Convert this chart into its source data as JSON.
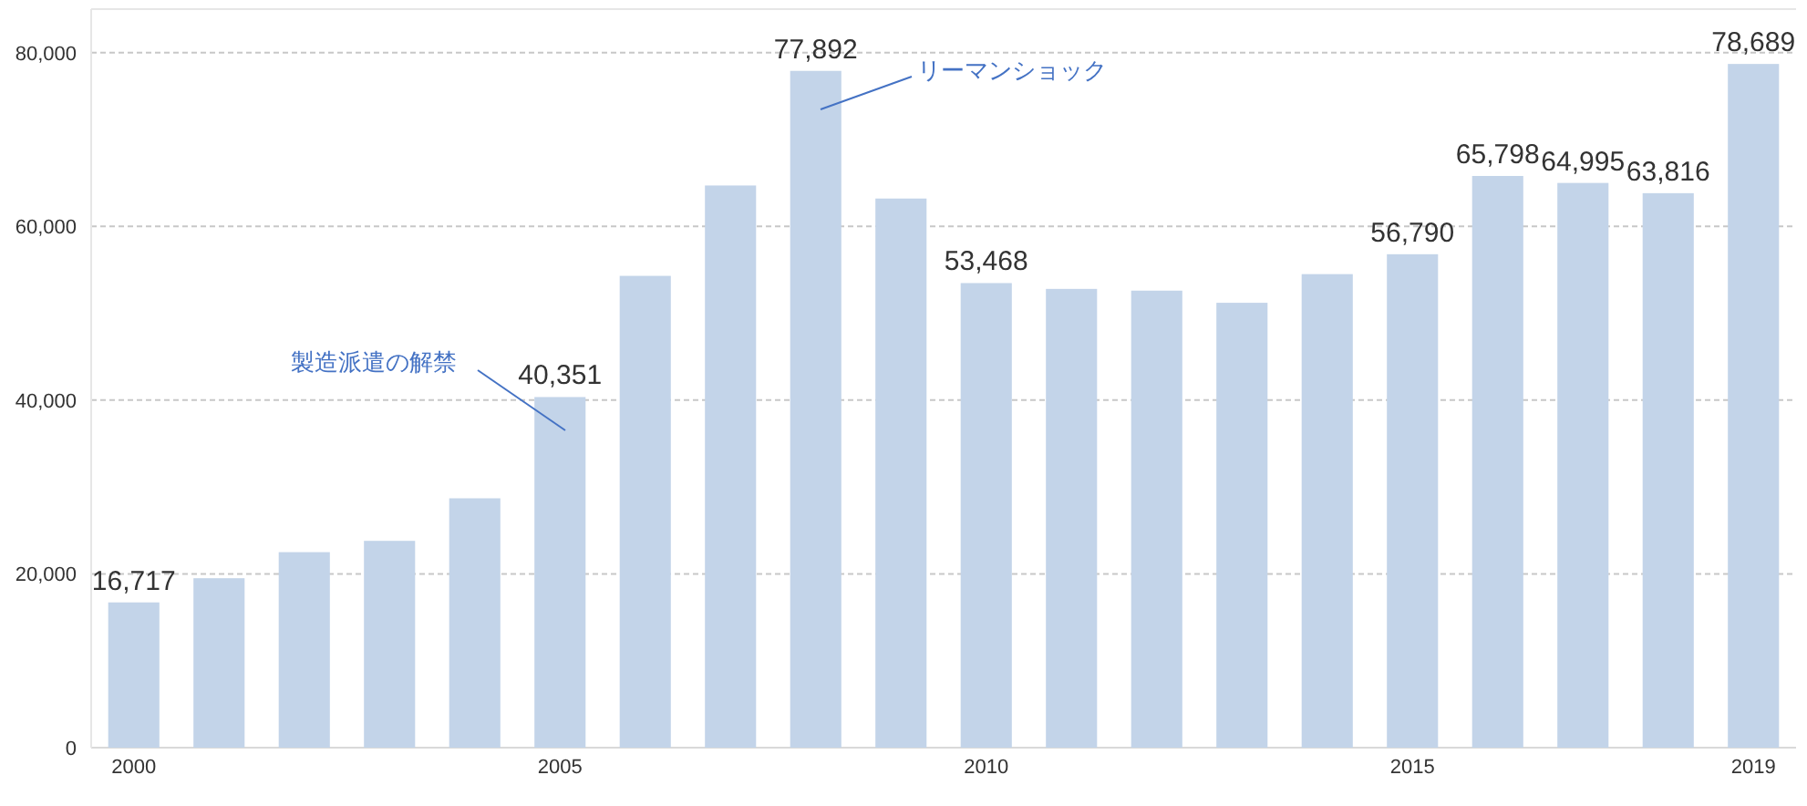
{
  "chart_data": {
    "type": "bar",
    "categories": [
      "2000",
      null,
      null,
      null,
      null,
      "2005",
      null,
      null,
      null,
      null,
      "2010",
      null,
      null,
      null,
      null,
      "2015",
      null,
      null,
      null,
      "2019"
    ],
    "values": [
      16717,
      19500,
      22500,
      23800,
      28700,
      40351,
      54300,
      64700,
      77892,
      63200,
      53468,
      52800,
      52600,
      51200,
      54500,
      56790,
      65798,
      64995,
      63816,
      78689
    ],
    "value_labels": [
      "16,717",
      null,
      null,
      null,
      null,
      "40,351",
      null,
      null,
      "77,892",
      null,
      "53,468",
      null,
      null,
      null,
      null,
      "56,790",
      "65,798",
      "64,995",
      "63,816",
      "78,689"
    ],
    "color": "#c3d4e9",
    "ylim": [
      0,
      85000
    ],
    "yticks": [
      {
        "value": 0,
        "label": "0"
      },
      {
        "value": 20000,
        "label": "20,000"
      },
      {
        "value": 40000,
        "label": "40,000"
      },
      {
        "value": 60000,
        "label": "60,000"
      },
      {
        "value": 80000,
        "label": "80,000"
      }
    ],
    "grid": "y",
    "annotations": [
      "製造派遣の解禁",
      "リーマンショック"
    ]
  }
}
